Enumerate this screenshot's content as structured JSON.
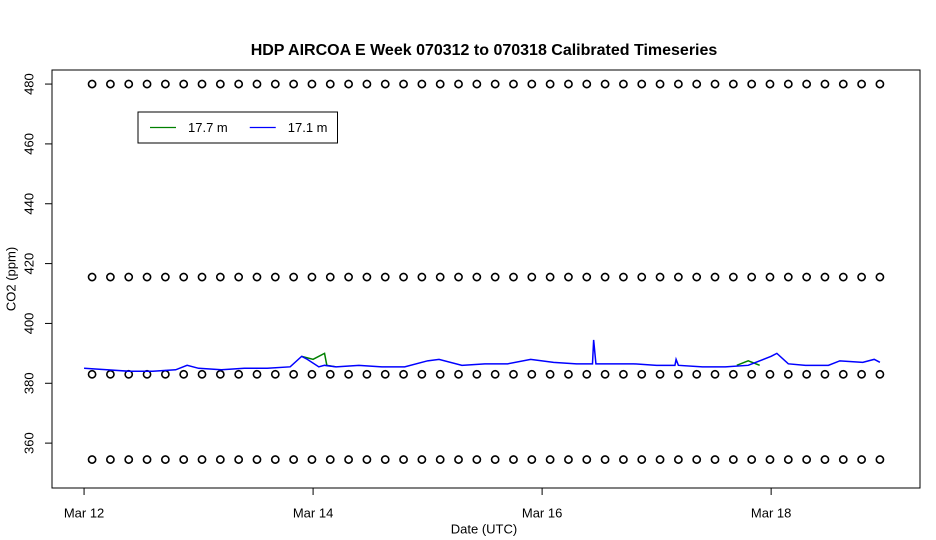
{
  "chart_data": {
    "type": "line",
    "title": "HDP AIRCOA E  Week 070312 to 070318  Calibrated Timeseries",
    "x_label": "Date (UTC)",
    "y_label": "CO2 (ppm)",
    "xlim": [
      -0.28,
      7.3
    ],
    "ylim": [
      345,
      484.7
    ],
    "xticks": [
      {
        "value": 0,
        "label": "Mar 12"
      },
      {
        "value": 2,
        "label": "Mar 14"
      },
      {
        "value": 4,
        "label": "Mar 16"
      },
      {
        "value": 6,
        "label": "Mar 18"
      }
    ],
    "yticks": [
      360,
      380,
      400,
      420,
      440,
      460,
      480
    ],
    "legend": "top-left",
    "series": [
      {
        "mode": "points",
        "color": "#000000",
        "x": [
          0.07,
          0.23,
          0.39,
          0.55,
          0.71,
          0.87,
          1.03,
          1.19,
          1.35,
          1.51,
          1.67,
          1.83,
          1.99,
          2.15,
          2.31,
          2.47,
          2.63,
          2.79,
          2.95,
          3.11,
          3.27,
          3.43,
          3.59,
          3.75,
          3.91,
          4.07,
          4.23,
          4.39,
          4.55,
          4.71,
          4.87,
          5.03,
          5.19,
          5.35,
          5.51,
          5.67,
          5.83,
          5.99,
          6.15,
          6.31,
          6.47,
          6.63,
          6.79,
          6.95
        ],
        "values": [
          480,
          480,
          480,
          480,
          480,
          480,
          480,
          480,
          480,
          480,
          480,
          480,
          480,
          480,
          480,
          480,
          480,
          480,
          480,
          480,
          480,
          480,
          480,
          480,
          480,
          480,
          480,
          480,
          480,
          480,
          480,
          480,
          480,
          480,
          480,
          480,
          480,
          480,
          480,
          480,
          480,
          480,
          480,
          480
        ]
      },
      {
        "mode": "points",
        "color": "#000000",
        "x": [
          0.07,
          0.23,
          0.39,
          0.55,
          0.71,
          0.87,
          1.03,
          1.19,
          1.35,
          1.51,
          1.67,
          1.83,
          1.99,
          2.15,
          2.31,
          2.47,
          2.63,
          2.79,
          2.95,
          3.11,
          3.27,
          3.43,
          3.59,
          3.75,
          3.91,
          4.07,
          4.23,
          4.39,
          4.55,
          4.71,
          4.87,
          5.03,
          5.19,
          5.35,
          5.51,
          5.67,
          5.83,
          5.99,
          6.15,
          6.31,
          6.47,
          6.63,
          6.79,
          6.95
        ],
        "values": [
          415.5,
          415.5,
          415.5,
          415.5,
          415.5,
          415.5,
          415.5,
          415.5,
          415.5,
          415.5,
          415.5,
          415.5,
          415.5,
          415.5,
          415.5,
          415.5,
          415.5,
          415.5,
          415.5,
          415.5,
          415.5,
          415.5,
          415.5,
          415.5,
          415.5,
          415.5,
          415.5,
          415.5,
          415.5,
          415.5,
          415.5,
          415.5,
          415.5,
          415.5,
          415.5,
          415.5,
          415.5,
          415.5,
          415.5,
          415.5,
          415.5,
          415.5,
          415.5,
          415.5
        ]
      },
      {
        "mode": "points",
        "color": "#000000",
        "x": [
          0.07,
          0.23,
          0.39,
          0.55,
          0.71,
          0.87,
          1.03,
          1.19,
          1.35,
          1.51,
          1.67,
          1.83,
          1.99,
          2.15,
          2.31,
          2.47,
          2.63,
          2.79,
          2.95,
          3.11,
          3.27,
          3.43,
          3.59,
          3.75,
          3.91,
          4.07,
          4.23,
          4.39,
          4.55,
          4.71,
          4.87,
          5.03,
          5.19,
          5.35,
          5.51,
          5.67,
          5.83,
          5.99,
          6.15,
          6.31,
          6.47,
          6.63,
          6.79,
          6.95
        ],
        "values": [
          383,
          383,
          383,
          383,
          383,
          383,
          383,
          383,
          383,
          383,
          383,
          383,
          383,
          383,
          383,
          383,
          383,
          383,
          383,
          383,
          383,
          383,
          383,
          383,
          383,
          383,
          383,
          383,
          383,
          383,
          383,
          383,
          383,
          383,
          383,
          383,
          383,
          383,
          383,
          383,
          383,
          383,
          383,
          383
        ]
      },
      {
        "mode": "points",
        "color": "#000000",
        "x": [
          0.07,
          0.23,
          0.39,
          0.55,
          0.71,
          0.87,
          1.03,
          1.19,
          1.35,
          1.51,
          1.67,
          1.83,
          1.99,
          2.15,
          2.31,
          2.47,
          2.63,
          2.79,
          2.95,
          3.11,
          3.27,
          3.43,
          3.59,
          3.75,
          3.91,
          4.07,
          4.23,
          4.39,
          4.55,
          4.71,
          4.87,
          5.03,
          5.19,
          5.35,
          5.51,
          5.67,
          5.83,
          5.99,
          6.15,
          6.31,
          6.47,
          6.63,
          6.79,
          6.95
        ],
        "values": [
          354.5,
          354.5,
          354.5,
          354.5,
          354.5,
          354.5,
          354.5,
          354.5,
          354.5,
          354.5,
          354.5,
          354.5,
          354.5,
          354.5,
          354.5,
          354.5,
          354.5,
          354.5,
          354.5,
          354.5,
          354.5,
          354.5,
          354.5,
          354.5,
          354.5,
          354.5,
          354.5,
          354.5,
          354.5,
          354.5,
          354.5,
          354.5,
          354.5,
          354.5,
          354.5,
          354.5,
          354.5,
          354.5,
          354.5,
          354.5,
          354.5,
          354.5,
          354.5,
          354.5
        ]
      },
      {
        "mode": "line",
        "name": "17.7 m",
        "color": "#008000",
        "x": [
          1.9,
          2.0,
          2.1,
          2.12,
          2.2,
          4,
          5.7,
          5.8,
          5.9
        ],
        "values": [
          389,
          388,
          390,
          386,
          385.5,
          null,
          386,
          387.5,
          386
        ]
      },
      {
        "mode": "line",
        "name": "17.1 m",
        "color": "#0000ff",
        "x": [
          0,
          0.2,
          0.4,
          0.6,
          0.8,
          0.9,
          1.0,
          1.2,
          1.4,
          1.6,
          1.8,
          1.9,
          1.95,
          2.05,
          2.1,
          2.2,
          2.4,
          2.6,
          2.8,
          3.0,
          3.1,
          3.3,
          3.5,
          3.7,
          3.9,
          4.1,
          4.3,
          4.44,
          4.45,
          4.47,
          4.6,
          4.8,
          5.0,
          5.16,
          5.17,
          5.19,
          5.4,
          5.6,
          5.8,
          6.0,
          6.05,
          6.15,
          6.3,
          6.5,
          6.6,
          6.8,
          6.9,
          6.95
        ],
        "values": [
          385,
          384.5,
          384,
          384,
          384.5,
          386,
          385,
          384.5,
          385,
          385,
          385.5,
          389,
          388,
          385.5,
          386,
          385.5,
          386,
          385.5,
          385.5,
          387.5,
          388,
          386,
          386.5,
          386.5,
          388,
          387,
          386.5,
          386.5,
          394.5,
          386.5,
          386.5,
          386.5,
          386,
          386,
          388,
          386,
          385.5,
          385.5,
          386,
          389,
          390,
          386.5,
          386,
          386,
          387.5,
          387,
          388,
          387
        ]
      }
    ]
  }
}
